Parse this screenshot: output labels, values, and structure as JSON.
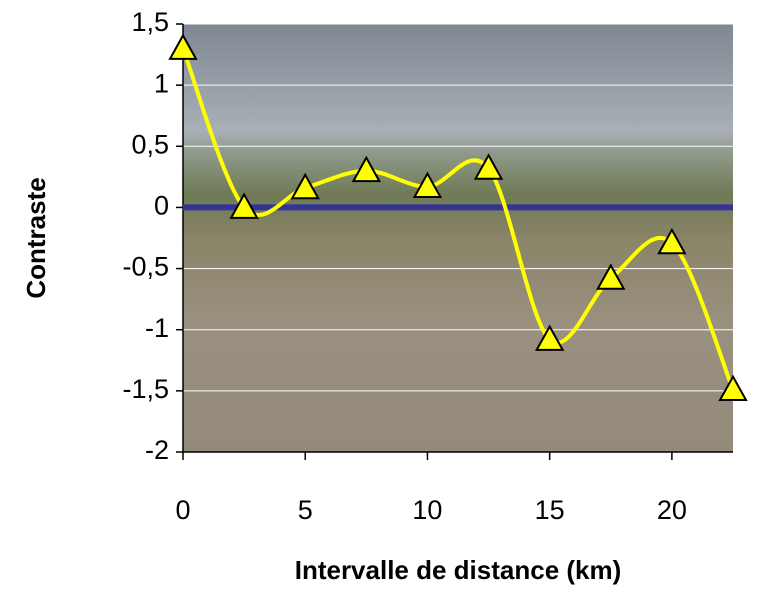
{
  "chart_data": {
    "type": "line",
    "x_label": "Intervalle de distance (km)",
    "y_label": "Contraste",
    "x": [
      0,
      2.5,
      5,
      7.5,
      10,
      12.5,
      15,
      17.5,
      20,
      22.5
    ],
    "series": [
      {
        "name": "Contraste",
        "color": "#ffff00",
        "values": [
          1.3,
          0.0,
          0.16,
          0.3,
          0.17,
          0.32,
          -1.08,
          -0.58,
          -0.29,
          -1.49
        ]
      }
    ],
    "reference_line": {
      "value": 0,
      "color": "#333399"
    },
    "xlim": [
      0,
      22.5
    ],
    "xticks": [
      0,
      5,
      10,
      15,
      20
    ],
    "ylim": [
      -2,
      1.5
    ],
    "yticks": [
      {
        "value": 1.5,
        "label": "1,5"
      },
      1,
      {
        "value": 0.5,
        "label": "0,5"
      },
      0,
      {
        "value": -0.5,
        "label": "-0,5"
      },
      -1,
      {
        "value": -1.5,
        "label": "-1,5"
      },
      -2
    ],
    "grid": true,
    "smooth": true
  }
}
